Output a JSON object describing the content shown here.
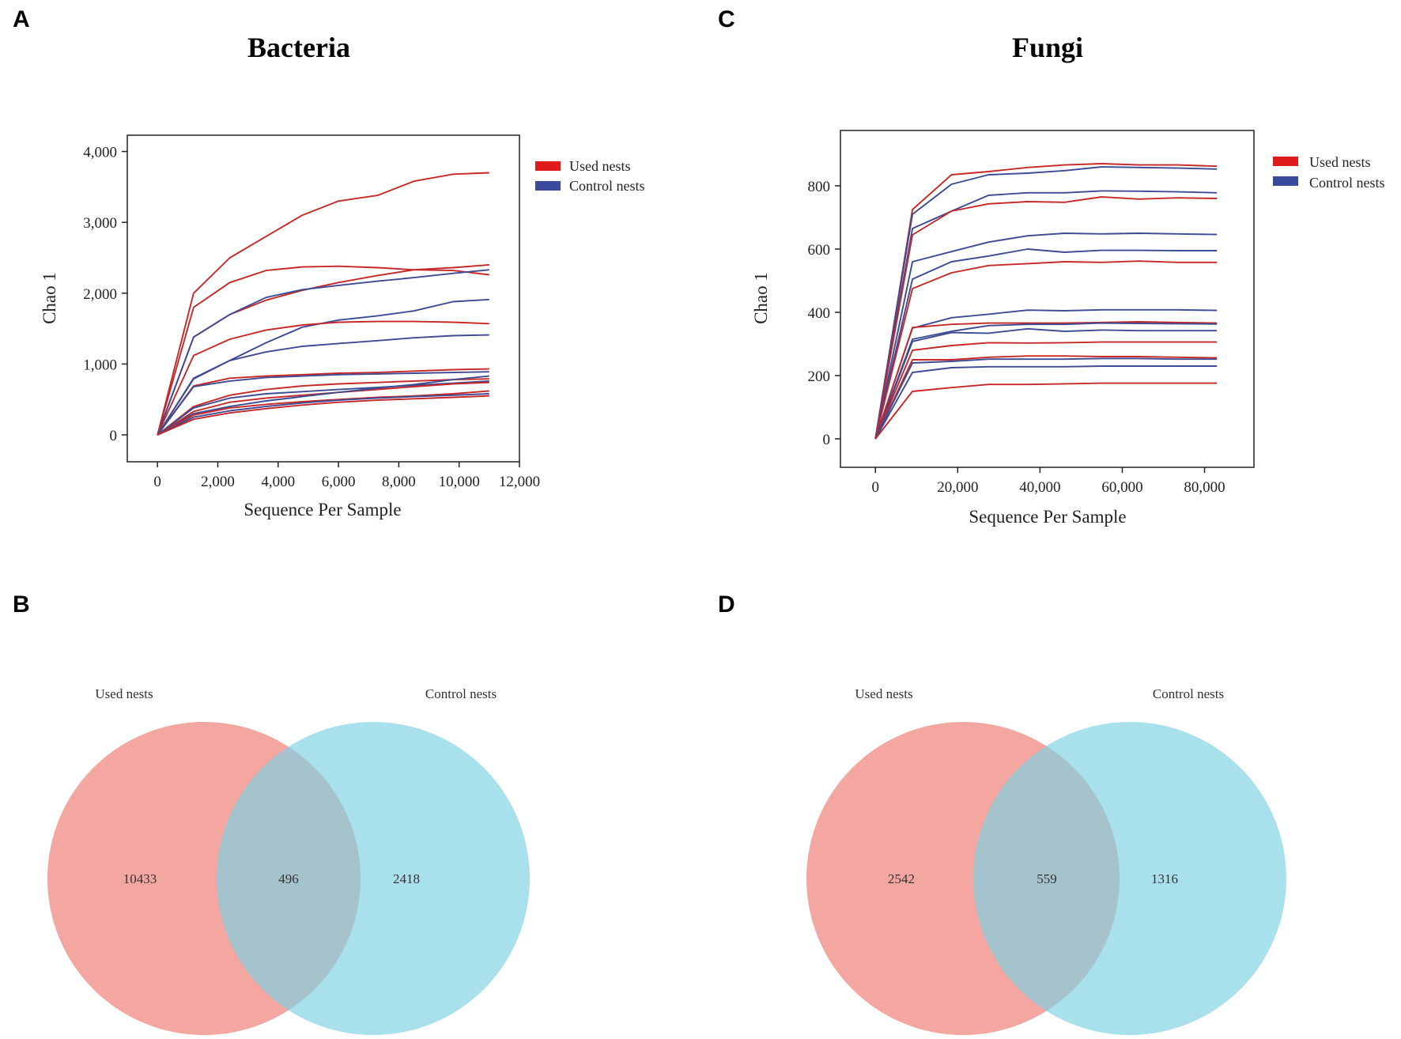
{
  "panels": {
    "A": "A",
    "B": "B",
    "C": "C",
    "D": "D"
  },
  "colors": {
    "used": "#c62828",
    "control": "#3d4b94",
    "legend_used": "#e01b1b",
    "legend_control": "#3b4a9c",
    "venn_used": "#f08880",
    "venn_control": "#7fd2e2"
  },
  "chart_data": [
    {
      "panel": "A",
      "type": "line",
      "title": "Bacteria",
      "xlabel": "Sequence Per Sample",
      "ylabel": "Chao 1",
      "xlim": [
        -1000,
        12000
      ],
      "ylim": [
        -380,
        4230
      ],
      "xticks": [
        0,
        2000,
        4000,
        6000,
        8000,
        10000,
        12000
      ],
      "xtick_labels": [
        "0",
        "2,000",
        "4,000",
        "6,000",
        "8,000",
        "10,000",
        "12,000"
      ],
      "yticks": [
        0,
        1000,
        2000,
        3000,
        4000
      ],
      "ytick_labels": [
        "0",
        "1,000",
        "2,000",
        "3,000",
        "4,000"
      ],
      "legend": [
        "Used nests",
        "Control nests"
      ],
      "legend_position": "right",
      "x": [
        0,
        1200,
        2400,
        3600,
        4800,
        6000,
        7300,
        8500,
        9800,
        11000
      ],
      "series": [
        {
          "name": "Used nests",
          "group": "used",
          "values": [
            0,
            2000,
            2500,
            2800,
            3100,
            3300,
            3380,
            3580,
            3680,
            3700
          ]
        },
        {
          "name": "Used nests",
          "group": "used",
          "values": [
            0,
            1800,
            2150,
            2320,
            2370,
            2380,
            2360,
            2330,
            2320,
            2260
          ]
        },
        {
          "name": "Used nests",
          "group": "used",
          "values": [
            0,
            1380,
            1700,
            1900,
            2040,
            2150,
            2250,
            2330,
            2360,
            2400
          ]
        },
        {
          "name": "Control nests",
          "group": "control",
          "values": [
            0,
            1380,
            1700,
            1940,
            2050,
            2110,
            2170,
            2220,
            2280,
            2330
          ]
        },
        {
          "name": "Control nests",
          "group": "control",
          "values": [
            0,
            800,
            1050,
            1300,
            1520,
            1620,
            1680,
            1750,
            1880,
            1910
          ]
        },
        {
          "name": "Used nests",
          "group": "used",
          "values": [
            0,
            1120,
            1350,
            1480,
            1550,
            1590,
            1600,
            1600,
            1590,
            1570
          ]
        },
        {
          "name": "Control nests",
          "group": "control",
          "values": [
            0,
            790,
            1050,
            1170,
            1250,
            1290,
            1330,
            1370,
            1400,
            1410
          ]
        },
        {
          "name": "Used nests",
          "group": "used",
          "values": [
            0,
            690,
            800,
            830,
            850,
            870,
            880,
            900,
            920,
            930
          ]
        },
        {
          "name": "Control nests",
          "group": "control",
          "values": [
            0,
            680,
            760,
            810,
            830,
            850,
            860,
            870,
            880,
            890
          ]
        },
        {
          "name": "Used nests",
          "group": "used",
          "values": [
            0,
            400,
            560,
            640,
            690,
            720,
            740,
            760,
            780,
            790
          ]
        },
        {
          "name": "Control nests",
          "group": "control",
          "values": [
            0,
            380,
            520,
            580,
            610,
            640,
            670,
            700,
            730,
            760
          ]
        },
        {
          "name": "Used nests",
          "group": "used",
          "values": [
            0,
            330,
            460,
            520,
            560,
            600,
            640,
            680,
            720,
            740
          ]
        },
        {
          "name": "Control nests",
          "group": "control",
          "values": [
            0,
            300,
            400,
            480,
            540,
            600,
            660,
            710,
            780,
            830
          ]
        },
        {
          "name": "Used nests",
          "group": "used",
          "values": [
            0,
            280,
            380,
            430,
            470,
            500,
            530,
            550,
            580,
            620
          ]
        },
        {
          "name": "Control nests",
          "group": "control",
          "values": [
            0,
            250,
            340,
            400,
            450,
            490,
            520,
            540,
            560,
            580
          ]
        },
        {
          "name": "Used nests",
          "group": "used",
          "values": [
            0,
            220,
            310,
            370,
            420,
            460,
            490,
            510,
            530,
            550
          ]
        }
      ]
    },
    {
      "panel": "C",
      "type": "line",
      "title": "Fungi",
      "xlabel": "Sequence Per Sample",
      "ylabel": "Chao 1",
      "xlim": [
        -8500,
        92000
      ],
      "ylim": [
        -90,
        975
      ],
      "xticks": [
        0,
        20000,
        40000,
        60000,
        80000
      ],
      "xtick_labels": [
        "0",
        "20,000",
        "40,000",
        "60,000",
        "80,000"
      ],
      "yticks": [
        0,
        200,
        400,
        600,
        800
      ],
      "ytick_labels": [
        "0",
        "200",
        "400",
        "600",
        "800"
      ],
      "legend": [
        "Used nests",
        "Control nests"
      ],
      "legend_position": "right",
      "x": [
        0,
        9000,
        18500,
        27500,
        37000,
        46000,
        55000,
        64000,
        73500,
        83000
      ],
      "series": [
        {
          "name": "Used nests",
          "group": "used",
          "values": [
            0,
            725,
            835,
            845,
            858,
            866,
            870,
            866,
            866,
            862
          ]
        },
        {
          "name": "Control nests",
          "group": "control",
          "values": [
            0,
            710,
            805,
            835,
            840,
            848,
            860,
            858,
            856,
            853
          ]
        },
        {
          "name": "Control nests",
          "group": "control",
          "values": [
            0,
            665,
            720,
            770,
            778,
            778,
            784,
            783,
            781,
            778
          ]
        },
        {
          "name": "Used nests",
          "group": "used",
          "values": [
            0,
            645,
            720,
            743,
            750,
            748,
            765,
            758,
            762,
            760
          ]
        },
        {
          "name": "Control nests",
          "group": "control",
          "values": [
            0,
            560,
            592,
            622,
            642,
            650,
            648,
            650,
            648,
            646
          ]
        },
        {
          "name": "Control nests",
          "group": "control",
          "values": [
            0,
            505,
            560,
            578,
            600,
            590,
            596,
            596,
            595,
            595
          ]
        },
        {
          "name": "Used nests",
          "group": "used",
          "values": [
            0,
            475,
            525,
            548,
            554,
            560,
            558,
            562,
            558,
            558
          ]
        },
        {
          "name": "Control nests",
          "group": "control",
          "values": [
            0,
            350,
            383,
            394,
            407,
            405,
            408,
            408,
            408,
            406
          ]
        },
        {
          "name": "Used nests",
          "group": "used",
          "values": [
            0,
            352,
            362,
            366,
            366,
            366,
            368,
            370,
            368,
            366
          ]
        },
        {
          "name": "Control nests",
          "group": "control",
          "values": [
            0,
            315,
            340,
            358,
            362,
            362,
            366,
            365,
            364,
            363
          ]
        },
        {
          "name": "Control nests",
          "group": "control",
          "values": [
            0,
            308,
            336,
            334,
            348,
            340,
            344,
            342,
            342,
            342
          ]
        },
        {
          "name": "Used nests",
          "group": "used",
          "values": [
            0,
            280,
            295,
            304,
            303,
            304,
            306,
            306,
            306,
            306
          ]
        },
        {
          "name": "Used nests",
          "group": "used",
          "values": [
            0,
            250,
            250,
            258,
            262,
            262,
            260,
            260,
            258,
            256
          ]
        },
        {
          "name": "Control nests",
          "group": "control",
          "values": [
            0,
            240,
            245,
            252,
            252,
            252,
            254,
            254,
            252,
            252
          ]
        },
        {
          "name": "Control nests",
          "group": "control",
          "values": [
            0,
            210,
            225,
            228,
            228,
            228,
            230,
            230,
            230,
            230
          ]
        },
        {
          "name": "Used nests",
          "group": "used",
          "values": [
            0,
            150,
            162,
            172,
            172,
            174,
            176,
            176,
            176,
            176
          ]
        }
      ]
    },
    {
      "panel": "B",
      "type": "venn",
      "sets": [
        "Used nests",
        "Control nests"
      ],
      "values": {
        "used_only": 10433,
        "shared": 496,
        "control_only": 2418
      }
    },
    {
      "panel": "D",
      "type": "venn",
      "sets": [
        "Used nests",
        "Control nests"
      ],
      "values": {
        "used_only": 2542,
        "shared": 559,
        "control_only": 1316
      }
    }
  ]
}
